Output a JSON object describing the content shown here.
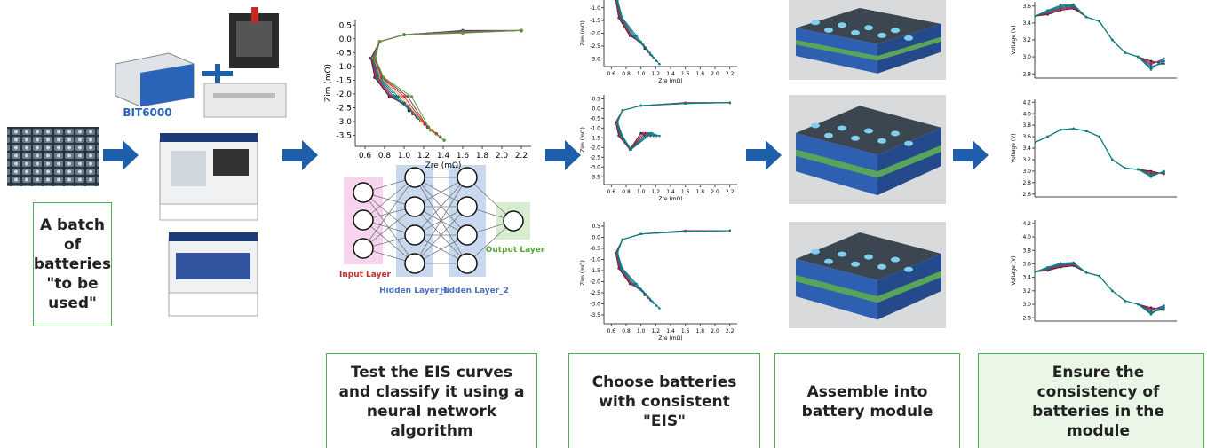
{
  "steps": [
    "A batch of batteries \"to be used\"",
    "Test the EIS curves and classify it using a neural network algorithm",
    "Choose batteries with consistent \"EIS\"",
    "Assemble into battery module",
    "Ensure the consistency of batteries in the module"
  ],
  "device_label": "BIT6000",
  "neural_network": {
    "input_label": "Input Layer",
    "hidden1_label": "Hidden Layer_1",
    "hidden2_label": "Hidden Layer_2",
    "output_label": "Output Layer"
  },
  "charts": [
    {
      "kind": "eis",
      "xlabel": "Zre (mΩ)",
      "ylabel": "Zim (mΩ)",
      "xlim": [
        0.5,
        2.3
      ],
      "ylim": [
        -3.9,
        0.7
      ],
      "xticks": [
        0.6,
        0.8,
        {
          "value": 1.0,
          "label": "1.0"
        },
        1.2,
        1.4,
        1.6,
        1.8,
        {
          "value": 2.0,
          "label": "2.0"
        },
        2.2
      ],
      "yticks": [
        0.5,
        {
          "value": 0,
          "label": "0.0"
        },
        -0.5,
        {
          "value": -1,
          "label": "-1.0"
        },
        -1.5,
        {
          "value": -2,
          "label": "-2.0"
        },
        -2.5,
        {
          "value": -3,
          "label": "-3.0"
        },
        -3.5
      ]
    },
    {
      "kind": "eis",
      "xlabel": "Zre (mΩ)",
      "ylabel": "Zim (mΩ)",
      "xlim": [
        0.5,
        2.3
      ],
      "ylim": [
        -3.3,
        -0.7
      ],
      "xticks": [
        0.6,
        0.8,
        {
          "value": 1.0,
          "label": "1.0"
        },
        1.2,
        1.4,
        1.6,
        1.8,
        {
          "value": 2.0,
          "label": "2.0"
        },
        2.2
      ],
      "yticks": [
        {
          "value": -1,
          "label": "-1.0"
        },
        -1.5,
        {
          "value": -2,
          "label": "-2.0"
        },
        -2.5,
        {
          "value": -3,
          "label": "-3.0"
        }
      ]
    },
    {
      "kind": "eis",
      "xlabel": "Zre (mΩ)",
      "ylabel": "Zim (mΩ)",
      "xlim": [
        0.5,
        2.3
      ],
      "ylim": [
        -3.9,
        0.7
      ],
      "xticks": [
        0.6,
        0.8,
        {
          "value": 1.0,
          "label": "1.0"
        },
        1.2,
        1.4,
        1.6,
        1.8,
        {
          "value": 2.0,
          "label": "2.0"
        },
        2.2
      ],
      "yticks": [
        0.5,
        {
          "value": 0,
          "label": "0.0"
        },
        -0.5,
        {
          "value": -1,
          "label": "-1.0"
        },
        -1.5,
        {
          "value": -2,
          "label": "-2.0"
        },
        -2.5,
        {
          "value": -3,
          "label": "-3.0"
        },
        -3.5
      ]
    },
    {
      "kind": "eis",
      "xlabel": "Zre (mΩ)",
      "ylabel": "Zim (mΩ)",
      "xlim": [
        0.5,
        2.3
      ],
      "ylim": [
        -3.9,
        0.7
      ],
      "xticks": [
        0.6,
        0.8,
        {
          "value": 1.0,
          "label": "1.0"
        },
        1.2,
        1.4,
        1.6,
        1.8,
        {
          "value": 2.0,
          "label": "2.0"
        },
        2.2
      ],
      "yticks": [
        0.5,
        {
          "value": 0,
          "label": "0.0"
        },
        -0.5,
        {
          "value": -1,
          "label": "-1.0"
        },
        -1.5,
        {
          "value": -2,
          "label": "-2.0"
        },
        -2.5,
        {
          "value": -3,
          "label": "-3.0"
        },
        -3.5
      ]
    },
    {
      "kind": "voltage",
      "ylabel": "Voltage (V)",
      "ylim": [
        2.75,
        3.65
      ],
      "yticks": [
        3.6,
        3.4,
        3.2,
        {
          "value": 3.0,
          "label": "3.0"
        },
        2.8
      ]
    },
    {
      "kind": "voltage",
      "ylabel": "Voltage (V)",
      "ylim": [
        2.55,
        4.25
      ],
      "yticks": [
        4.2,
        {
          "value": 4.0,
          "label": "4.0"
        },
        3.8,
        3.6,
        3.4,
        3.2,
        {
          "value": 3.0,
          "label": "3.0"
        },
        2.8,
        2.6
      ]
    },
    {
      "kind": "voltage",
      "ylabel": "Voltage (V)",
      "ylim": [
        2.75,
        4.25
      ],
      "yticks": [
        4.2,
        {
          "value": 4.0,
          "label": "4.0"
        },
        3.8,
        3.6,
        3.4,
        3.2,
        {
          "value": 3.0,
          "label": "3.0"
        },
        2.8
      ]
    }
  ]
}
